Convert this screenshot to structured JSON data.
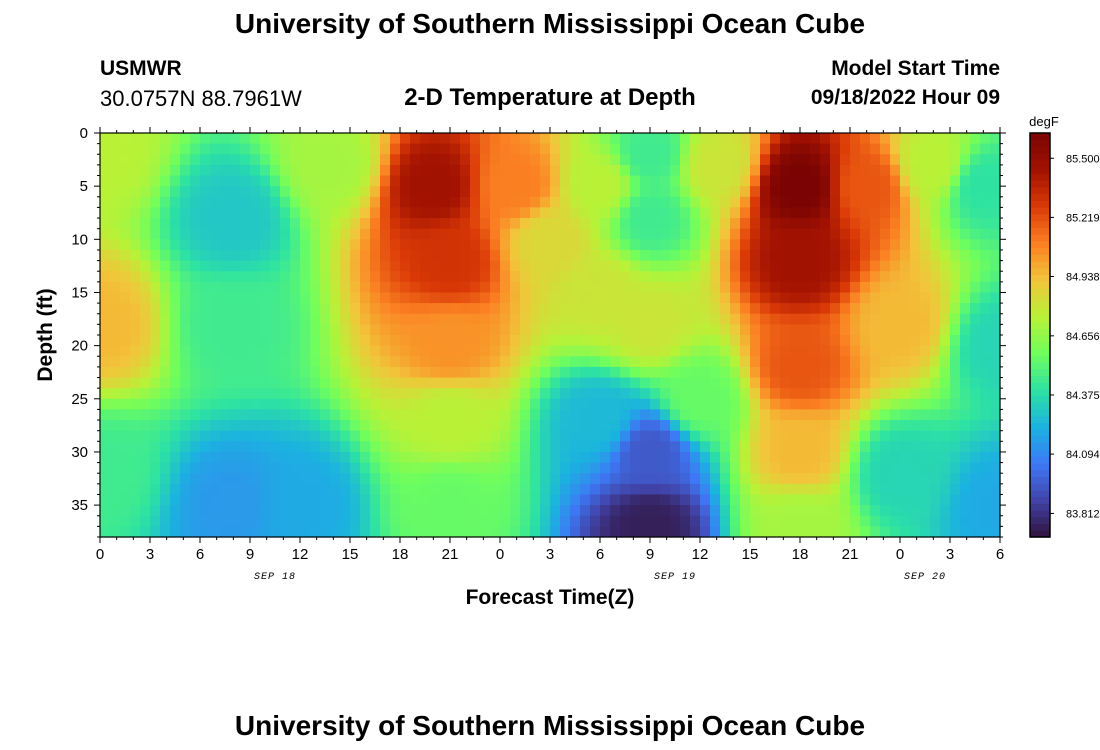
{
  "header": {
    "title": "University of Southern Mississippi Ocean Cube",
    "station": "USMWR",
    "coordinates": "30.0757N  88.7961W",
    "subtitle": "2-D Temperature at Depth",
    "start_label": "Model Start Time",
    "start_value": "09/18/2022 Hour 09"
  },
  "footer": {
    "title": "University of Southern Mississippi Ocean Cube"
  },
  "chart_data": {
    "type": "heatmap",
    "title": "2-D Temperature at Depth",
    "xlabel": "Forecast Time(Z)",
    "ylabel": "Depth (ft)",
    "x_tick_labels": [
      "0",
      "3",
      "6",
      "9",
      "12",
      "15",
      "18",
      "21",
      "0",
      "3",
      "6",
      "9",
      "12",
      "15",
      "18",
      "21",
      "0",
      "3",
      "6"
    ],
    "date_labels": [
      {
        "label": "SEP 18",
        "at_tick": 3.5
      },
      {
        "label": "SEP 19",
        "at_tick": 11.5
      },
      {
        "label": "SEP 20",
        "at_tick": 16.5
      }
    ],
    "xlim_hours": [
      0,
      54
    ],
    "y_ticks": [
      0,
      5,
      10,
      15,
      20,
      25,
      30,
      35
    ],
    "ylim": [
      0,
      38
    ],
    "y_inverted": true,
    "colorbar": {
      "unit": "degF",
      "tick_labels": [
        "85.500",
        "85.219",
        "84.938",
        "84.656",
        "84.375",
        "84.094",
        "83.812"
      ],
      "tick_values": [
        85.5,
        85.219,
        84.938,
        84.656,
        84.375,
        84.094,
        83.812
      ],
      "range": [
        83.7,
        85.62
      ],
      "colors": [
        "#30123b",
        "#4143a7",
        "#3e78f6",
        "#1bb2e0",
        "#2de2a3",
        "#6ffe5d",
        "#b8f237",
        "#f2c53a",
        "#fb8022",
        "#db3a07",
        "#a21201",
        "#7a0403"
      ]
    },
    "contour_points": [
      {
        "t": 0,
        "d": 18,
        "v": 84.95
      },
      {
        "t": 0,
        "d": 2,
        "v": 84.75
      },
      {
        "t": 0,
        "d": 32,
        "v": 84.45
      },
      {
        "t": 8,
        "d": 8,
        "v": 84.3
      },
      {
        "t": 8,
        "d": 18,
        "v": 84.45
      },
      {
        "t": 8,
        "d": 35,
        "v": 84.15
      },
      {
        "t": 12,
        "d": 35,
        "v": 84.2
      },
      {
        "t": 14,
        "d": 3,
        "v": 84.7
      },
      {
        "t": 20,
        "d": 5,
        "v": 85.45
      },
      {
        "t": 21,
        "d": 12,
        "v": 85.3
      },
      {
        "t": 21,
        "d": 20,
        "v": 85.05
      },
      {
        "t": 21,
        "d": 27,
        "v": 84.75
      },
      {
        "t": 21,
        "d": 35,
        "v": 84.55
      },
      {
        "t": 25,
        "d": 5,
        "v": 85.1
      },
      {
        "t": 27,
        "d": 10,
        "v": 84.85
      },
      {
        "t": 30,
        "d": 5,
        "v": 84.75
      },
      {
        "t": 30,
        "d": 15,
        "v": 84.8
      },
      {
        "t": 30,
        "d": 27,
        "v": 84.25
      },
      {
        "t": 33,
        "d": 2,
        "v": 84.45
      },
      {
        "t": 33,
        "d": 8,
        "v": 84.45
      },
      {
        "t": 33,
        "d": 18,
        "v": 84.8
      },
      {
        "t": 33,
        "d": 30,
        "v": 83.95
      },
      {
        "t": 33,
        "d": 37,
        "v": 83.75
      },
      {
        "t": 36,
        "d": 25,
        "v": 84.55
      },
      {
        "t": 37,
        "d": 3,
        "v": 84.8
      },
      {
        "t": 42,
        "d": 5,
        "v": 85.62
      },
      {
        "t": 42,
        "d": 12,
        "v": 85.45
      },
      {
        "t": 42,
        "d": 22,
        "v": 85.2
      },
      {
        "t": 42,
        "d": 30,
        "v": 84.95
      },
      {
        "t": 42,
        "d": 37,
        "v": 84.7
      },
      {
        "t": 46,
        "d": 5,
        "v": 85.2
      },
      {
        "t": 48,
        "d": 18,
        "v": 84.95
      },
      {
        "t": 48,
        "d": 32,
        "v": 84.35
      },
      {
        "t": 50,
        "d": 3,
        "v": 84.75
      },
      {
        "t": 53,
        "d": 5,
        "v": 84.4
      },
      {
        "t": 54,
        "d": 20,
        "v": 84.35
      },
      {
        "t": 54,
        "d": 35,
        "v": 84.2
      }
    ]
  }
}
